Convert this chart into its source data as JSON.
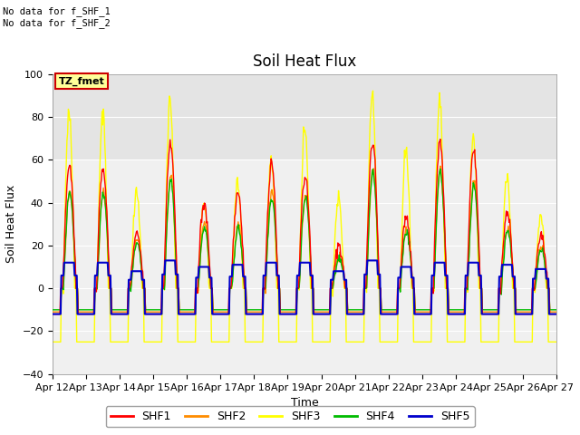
{
  "title": "Soil Heat Flux",
  "ylabel": "Soil Heat Flux",
  "xlabel": "Time",
  "ylim": [
    -40,
    100
  ],
  "yticks": [
    -40,
    -20,
    0,
    20,
    40,
    60,
    80,
    100
  ],
  "x_labels": [
    "Apr 12",
    "Apr 13",
    "Apr 14",
    "Apr 15",
    "Apr 16",
    "Apr 17",
    "Apr 18",
    "Apr 19",
    "Apr 20",
    "Apr 21",
    "Apr 22",
    "Apr 23",
    "Apr 24",
    "Apr 25",
    "Apr 26",
    "Apr 27"
  ],
  "series_colors": {
    "SHF1": "#FF0000",
    "SHF2": "#FF8C00",
    "SHF3": "#FFFF00",
    "SHF4": "#00BB00",
    "SHF5": "#0000CC"
  },
  "annotation_text": "No data for f_SHF_1\nNo data for f_SHF_2",
  "timezone_label": "TZ_fmet",
  "timezone_box_facecolor": "#FFFF99",
  "timezone_box_edgecolor": "#CC0000",
  "plot_bg_color": "#F0F0F0",
  "title_fontsize": 12,
  "label_fontsize": 9,
  "tick_fontsize": 8,
  "linewidth": 1.0,
  "n_days": 15,
  "pts_per_day": 48,
  "day_peaks_shf3": [
    82,
    82,
    45,
    88,
    40,
    50,
    60,
    75,
    42,
    90,
    65,
    87,
    70,
    52,
    35
  ],
  "day_peaks_shf1": [
    57,
    55,
    26,
    68,
    40,
    45,
    57,
    52,
    20,
    68,
    33,
    68,
    65,
    35,
    25
  ],
  "day_peaks_shf2": [
    45,
    45,
    22,
    52,
    30,
    30,
    45,
    43,
    15,
    55,
    28,
    55,
    50,
    28,
    20
  ],
  "day_peaks_shf4": [
    44,
    44,
    21,
    50,
    28,
    28,
    43,
    42,
    14,
    54,
    26,
    54,
    48,
    27,
    18
  ],
  "day_peaks_shf5": [
    12,
    12,
    8,
    13,
    10,
    11,
    12,
    12,
    8,
    13,
    10,
    12,
    12,
    11,
    9
  ],
  "night_shf1": -12,
  "night_shf2": -11,
  "night_shf3": -25,
  "night_shf4": -10,
  "night_shf5": -12
}
